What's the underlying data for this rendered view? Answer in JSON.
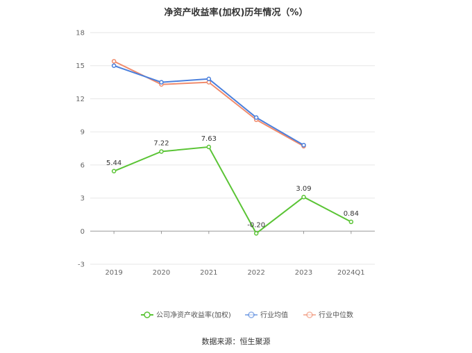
{
  "chart_data": {
    "type": "line",
    "title": "净资产收益率(加权)历年情况（%）",
    "categories": [
      "2019",
      "2020",
      "2021",
      "2022",
      "2023",
      "2024Q1"
    ],
    "ylim": [
      -3,
      18
    ],
    "yticks": [
      -3,
      0,
      3,
      6,
      9,
      12,
      15,
      18
    ],
    "grid": true,
    "legend_position": "bottom",
    "series": [
      {
        "name": "公司净资产收益率(加权)",
        "color": "#5ac435",
        "values": [
          5.44,
          7.22,
          7.63,
          -0.2,
          3.09,
          0.84
        ],
        "labels": [
          "5.44",
          "7.22",
          "7.63",
          "-0.20",
          "3.09",
          "0.84"
        ]
      },
      {
        "name": "行业均值",
        "color": "#4a7fdc",
        "values": [
          15.0,
          13.5,
          13.8,
          10.3,
          7.8,
          null
        ]
      },
      {
        "name": "行业中位数",
        "color": "#f08a6b",
        "values": [
          15.4,
          13.3,
          13.5,
          10.1,
          7.7,
          null
        ]
      }
    ]
  },
  "source_text": "数据来源：恒生聚源"
}
